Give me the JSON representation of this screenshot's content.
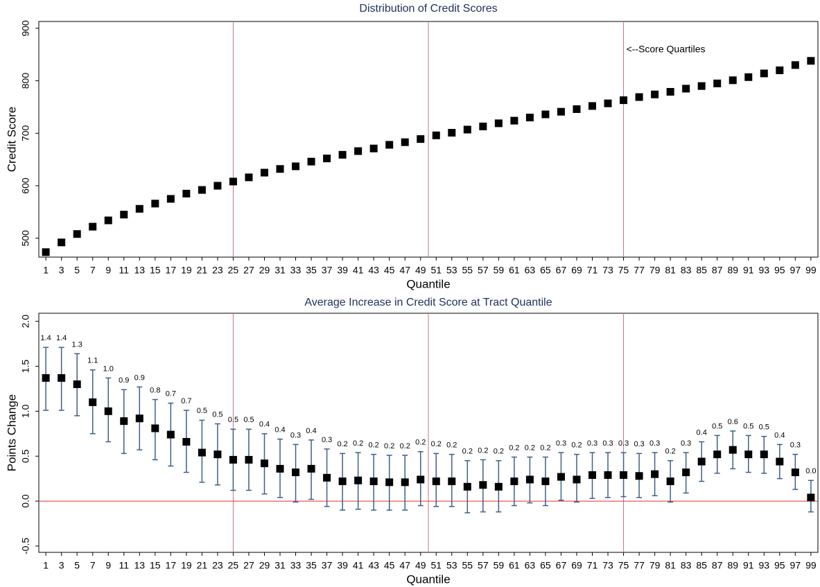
{
  "chart_data": [
    {
      "type": "scatter",
      "title": "Distribution of Credit Scores",
      "xlabel": "Quantile",
      "ylabel": "Credit Score",
      "x": [
        1,
        3,
        5,
        7,
        9,
        11,
        13,
        15,
        17,
        19,
        21,
        23,
        25,
        27,
        29,
        31,
        33,
        35,
        37,
        39,
        41,
        43,
        45,
        47,
        49,
        51,
        53,
        55,
        57,
        59,
        61,
        63,
        65,
        67,
        69,
        71,
        73,
        75,
        77,
        79,
        81,
        83,
        85,
        87,
        89,
        91,
        93,
        95,
        97,
        99
      ],
      "values": [
        473.5,
        492,
        508,
        522,
        534,
        545,
        556,
        566,
        575,
        585,
        592,
        600,
        608,
        616,
        625,
        632,
        637,
        646,
        652,
        659,
        666,
        671,
        678,
        683,
        689,
        696,
        701,
        707,
        713,
        719,
        724,
        730,
        736,
        741,
        746,
        752,
        757,
        763,
        769,
        774,
        779,
        785,
        790,
        795,
        801,
        807,
        814,
        820,
        830,
        838
      ],
      "color": "#000000",
      "xlim": [
        0.1,
        99.9
      ],
      "xticks": [
        1,
        3,
        5,
        7,
        9,
        11,
        13,
        15,
        17,
        19,
        21,
        23,
        25,
        27,
        29,
        31,
        33,
        35,
        37,
        39,
        41,
        43,
        45,
        47,
        49,
        51,
        53,
        55,
        57,
        59,
        61,
        63,
        65,
        67,
        69,
        71,
        73,
        75,
        77,
        79,
        81,
        83,
        85,
        87,
        89,
        91,
        93,
        95,
        97,
        99
      ],
      "ylim": [
        464,
        913
      ],
      "yticks": [
        500,
        600,
        700,
        800,
        900
      ],
      "vlines": [
        25,
        50,
        75
      ],
      "vline_color": "#c8708a",
      "annotation": "<--Score Quartiles"
    },
    {
      "type": "errorbar",
      "title": "Average Increase in Credit Score at Tract Quantile",
      "xlabel": "Quantile",
      "ylabel": "Points Change",
      "x": [
        1,
        3,
        5,
        7,
        9,
        11,
        13,
        15,
        17,
        19,
        21,
        23,
        25,
        27,
        29,
        31,
        33,
        35,
        37,
        39,
        41,
        43,
        45,
        47,
        49,
        51,
        53,
        55,
        57,
        59,
        61,
        63,
        65,
        67,
        69,
        71,
        73,
        75,
        77,
        79,
        81,
        83,
        85,
        87,
        89,
        91,
        93,
        95,
        97,
        99
      ],
      "values": [
        1.37,
        1.37,
        1.3,
        1.1,
        1.0,
        0.89,
        0.92,
        0.81,
        0.74,
        0.66,
        0.54,
        0.52,
        0.46,
        0.46,
        0.42,
        0.36,
        0.32,
        0.36,
        0.26,
        0.22,
        0.23,
        0.22,
        0.21,
        0.21,
        0.24,
        0.22,
        0.22,
        0.16,
        0.18,
        0.16,
        0.22,
        0.24,
        0.22,
        0.27,
        0.24,
        0.29,
        0.29,
        0.29,
        0.28,
        0.3,
        0.22,
        0.32,
        0.44,
        0.52,
        0.57,
        0.52,
        0.52,
        0.44,
        0.32,
        0.04
      ],
      "value_labels": [
        "1.4",
        "1.4",
        "1.3",
        "1.1",
        "1.0",
        "0.9",
        "0.9",
        "0.8",
        "0.7",
        "0.7",
        "0.5",
        "0.5",
        "0.5",
        "0.5",
        "0.4",
        "0.4",
        "0.3",
        "0.4",
        "0.3",
        "0.2",
        "0.2",
        "0.2",
        "0.2",
        "0.2",
        "0.2",
        "0.2",
        "0.2",
        "0.2",
        "0.2",
        "0.2",
        "0.2",
        "0.2",
        "0.2",
        "0.3",
        "0.2",
        "0.3",
        "0.3",
        "0.3",
        "0.3",
        "0.3",
        "0.2",
        "0.3",
        "0.4",
        "0.5",
        "0.6",
        "0.5",
        "0.5",
        "0.4",
        "0.3",
        "0.0"
      ],
      "ci_low": [
        1.01,
        1.01,
        0.95,
        0.75,
        0.66,
        0.53,
        0.57,
        0.46,
        0.39,
        0.32,
        0.21,
        0.18,
        0.12,
        0.12,
        0.08,
        0.04,
        -0.01,
        0.02,
        -0.06,
        -0.1,
        -0.09,
        -0.1,
        -0.1,
        -0.1,
        -0.05,
        -0.06,
        -0.06,
        -0.13,
        -0.12,
        -0.12,
        -0.05,
        -0.02,
        -0.05,
        0.01,
        -0.01,
        0.03,
        0.04,
        0.05,
        0.04,
        0.06,
        -0.01,
        0.09,
        0.22,
        0.31,
        0.36,
        0.32,
        0.31,
        0.25,
        0.13,
        -0.12
      ],
      "ci_high": [
        1.71,
        1.71,
        1.64,
        1.46,
        1.37,
        1.24,
        1.27,
        1.13,
        1.09,
        1.01,
        0.9,
        0.86,
        0.8,
        0.8,
        0.75,
        0.69,
        0.63,
        0.68,
        0.58,
        0.53,
        0.54,
        0.52,
        0.51,
        0.51,
        0.55,
        0.53,
        0.52,
        0.45,
        0.46,
        0.45,
        0.49,
        0.49,
        0.49,
        0.54,
        0.52,
        0.54,
        0.54,
        0.54,
        0.53,
        0.54,
        0.45,
        0.54,
        0.66,
        0.73,
        0.78,
        0.73,
        0.72,
        0.63,
        0.52,
        0.23
      ],
      "color": "#000000",
      "bar_color": "#3d5f8a",
      "xlim": [
        0.1,
        99.9
      ],
      "xticks": [
        1,
        3,
        5,
        7,
        9,
        11,
        13,
        15,
        17,
        19,
        21,
        23,
        25,
        27,
        29,
        31,
        33,
        35,
        37,
        39,
        41,
        43,
        45,
        47,
        49,
        51,
        53,
        55,
        57,
        59,
        61,
        63,
        65,
        67,
        69,
        71,
        73,
        75,
        77,
        79,
        81,
        83,
        85,
        87,
        89,
        91,
        93,
        95,
        97,
        99
      ],
      "ylim": [
        -0.57,
        2.09
      ],
      "yticks": [
        {
          "value": -0.5,
          "label": "-0.5"
        },
        {
          "value": 0,
          "label": "0.0"
        },
        {
          "value": 0.5,
          "label": "0.5"
        },
        {
          "value": 1,
          "label": "1.0"
        },
        {
          "value": 1.5,
          "label": "1.5"
        },
        {
          "value": 2,
          "label": "2.0"
        }
      ],
      "vlines": [
        25,
        50,
        75
      ],
      "vline_color": "#c8708a",
      "hline": 0,
      "hline_color": "#e0302a"
    }
  ]
}
